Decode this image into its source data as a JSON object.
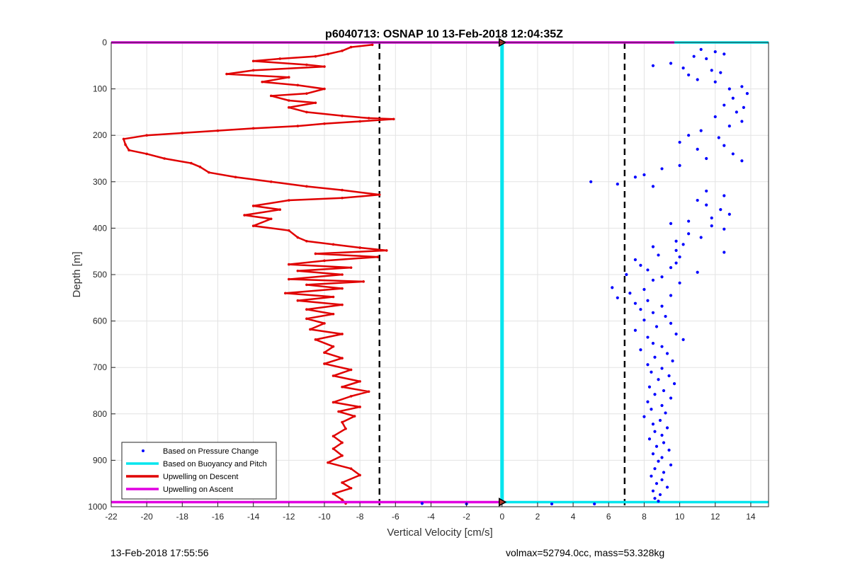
{
  "footer": {
    "timestamp": "13-Feb-2018 17:55:56",
    "mass_info": "volmax=52794.0cc, mass=53.328kg"
  },
  "colors": {
    "pressure_points": "#0000ff",
    "buoyancy_line": "#00e5ee",
    "descent_line": "#e00000",
    "ascent_line": "#e000e0",
    "dashed_lines": "#000000",
    "marker_fill": "#c0392b"
  },
  "chart_data": {
    "type": "line",
    "title": "p6040713: OSNAP 10 13-Feb-2018 12:04:35Z",
    "xlabel": "Vertical Velocity [cm/s]",
    "ylabel": "Depth [m]",
    "xlim": [
      -22,
      15
    ],
    "ylim": [
      0,
      1000
    ],
    "y_reversed": true,
    "grid": true,
    "xticks": [
      -22,
      -20,
      -18,
      -16,
      -14,
      -12,
      -10,
      -8,
      -6,
      -4,
      -2,
      0,
      2,
      4,
      6,
      8,
      10,
      12,
      14
    ],
    "yticks": [
      0,
      100,
      200,
      300,
      400,
      500,
      600,
      700,
      800,
      900,
      1000
    ],
    "legend": {
      "placement": "bottom-left",
      "entries": [
        {
          "label": "Based on Pressure Change",
          "style": "dot",
          "color": "#0000ff"
        },
        {
          "label": "Based on Buoyancy and Pitch",
          "style": "line",
          "color": "#00e5ee"
        },
        {
          "label": "Upwelling on Descent",
          "style": "line",
          "color": "#e00000"
        },
        {
          "label": "Upwelling on Ascent",
          "style": "line",
          "color": "#e000e0"
        }
      ]
    },
    "reference_lines": {
      "dashed_vertical_x": [
        -6.9,
        6.9
      ],
      "buoyancy_vertical_x": 0,
      "surface_depth": 0,
      "bottom_depth": 990
    },
    "series": [
      {
        "name": "Upwelling on Descent",
        "kind": "line",
        "points": [
          [
            -7.3,
            5
          ],
          [
            -8.5,
            10
          ],
          [
            -9.0,
            18
          ],
          [
            -9.8,
            25
          ],
          [
            -10.5,
            30
          ],
          [
            -12.5,
            35
          ],
          [
            -14.0,
            40
          ],
          [
            -11.0,
            48
          ],
          [
            -10.0,
            52
          ],
          [
            -14.0,
            60
          ],
          [
            -15.5,
            68
          ],
          [
            -12.0,
            75
          ],
          [
            -13.5,
            85
          ],
          [
            -11.5,
            92
          ],
          [
            -10.0,
            100
          ],
          [
            -11.0,
            110
          ],
          [
            -13.0,
            115
          ],
          [
            -12.0,
            125
          ],
          [
            -10.5,
            130
          ],
          [
            -12.0,
            140
          ],
          [
            -11.0,
            150
          ],
          [
            -9.0,
            158
          ],
          [
            -7.5,
            163
          ],
          [
            -6.1,
            165
          ],
          [
            -8.0,
            170
          ],
          [
            -10.0,
            175
          ],
          [
            -11.5,
            180
          ],
          [
            -14.0,
            185
          ],
          [
            -16.0,
            190
          ],
          [
            -18.0,
            195
          ],
          [
            -20.0,
            200
          ],
          [
            -21.3,
            208
          ],
          [
            -21.2,
            220
          ],
          [
            -21.0,
            232
          ],
          [
            -20.0,
            240
          ],
          [
            -19.0,
            250
          ],
          [
            -17.5,
            260
          ],
          [
            -17.0,
            268
          ],
          [
            -16.5,
            280
          ],
          [
            -15.0,
            290
          ],
          [
            -13.0,
            300
          ],
          [
            -11.0,
            310
          ],
          [
            -9.0,
            318
          ],
          [
            -6.9,
            328
          ],
          [
            -9.0,
            335
          ],
          [
            -12.0,
            340
          ],
          [
            -14.0,
            352
          ],
          [
            -12.5,
            360
          ],
          [
            -14.5,
            372
          ],
          [
            -13.0,
            380
          ],
          [
            -14.0,
            395
          ],
          [
            -12.0,
            405
          ],
          [
            -11.5,
            420
          ],
          [
            -11.0,
            428
          ],
          [
            -9.5,
            435
          ],
          [
            -8.0,
            442
          ],
          [
            -6.5,
            448
          ],
          [
            -10.5,
            455
          ],
          [
            -7.0,
            462
          ],
          [
            -10.0,
            470
          ],
          [
            -12.0,
            478
          ],
          [
            -8.5,
            485
          ],
          [
            -11.5,
            492
          ],
          [
            -9.0,
            500
          ],
          [
            -12.0,
            510
          ],
          [
            -7.8,
            515
          ],
          [
            -11.0,
            522
          ],
          [
            -9.0,
            530
          ],
          [
            -12.2,
            540
          ],
          [
            -9.5,
            548
          ],
          [
            -11.5,
            556
          ],
          [
            -9.0,
            565
          ],
          [
            -11.0,
            575
          ],
          [
            -9.5,
            585
          ],
          [
            -11.0,
            595
          ],
          [
            -10.0,
            605
          ],
          [
            -10.8,
            618
          ],
          [
            -9.0,
            628
          ],
          [
            -10.5,
            640
          ],
          [
            -9.5,
            655
          ],
          [
            -10.0,
            668
          ],
          [
            -9.0,
            680
          ],
          [
            -10.0,
            692
          ],
          [
            -8.5,
            705
          ],
          [
            -9.5,
            718
          ],
          [
            -8.0,
            730
          ],
          [
            -9.0,
            742
          ],
          [
            -7.5,
            752
          ],
          [
            -8.5,
            762
          ],
          [
            -9.5,
            775
          ],
          [
            -8.0,
            785
          ],
          [
            -9.2,
            795
          ],
          [
            -8.3,
            805
          ],
          [
            -9.0,
            818
          ],
          [
            -8.8,
            832
          ],
          [
            -9.5,
            848
          ],
          [
            -9.0,
            862
          ],
          [
            -9.5,
            875
          ],
          [
            -9.0,
            890
          ],
          [
            -9.8,
            905
          ],
          [
            -8.5,
            918
          ],
          [
            -8.0,
            932
          ],
          [
            -9.0,
            948
          ],
          [
            -8.5,
            960
          ],
          [
            -9.5,
            972
          ],
          [
            -9.0,
            985
          ],
          [
            -8.8,
            993
          ]
        ]
      },
      {
        "name": "Upwelling on Ascent",
        "kind": "line",
        "points": [
          [
            -22,
            0
          ],
          [
            9.7,
            0
          ]
        ]
      },
      {
        "name": "Based on Buoyancy and Pitch",
        "kind": "line",
        "points": [
          [
            9.7,
            0
          ],
          [
            15,
            0
          ]
        ]
      },
      {
        "name": "Based on Pressure Change",
        "kind": "scatter",
        "points": [
          [
            11.2,
            15
          ],
          [
            12.0,
            20
          ],
          [
            12.5,
            25
          ],
          [
            10.8,
            30
          ],
          [
            11.5,
            35
          ],
          [
            9.5,
            45
          ],
          [
            8.5,
            50
          ],
          [
            10.2,
            55
          ],
          [
            11.8,
            60
          ],
          [
            12.3,
            65
          ],
          [
            10.5,
            70
          ],
          [
            11.0,
            80
          ],
          [
            12.0,
            85
          ],
          [
            13.5,
            95
          ],
          [
            12.8,
            100
          ],
          [
            13.8,
            110
          ],
          [
            13.0,
            120
          ],
          [
            12.5,
            135
          ],
          [
            13.6,
            140
          ],
          [
            13.2,
            150
          ],
          [
            12.0,
            160
          ],
          [
            13.5,
            170
          ],
          [
            12.8,
            180
          ],
          [
            11.2,
            190
          ],
          [
            10.5,
            200
          ],
          [
            12.2,
            205
          ],
          [
            10.0,
            215
          ],
          [
            12.5,
            222
          ],
          [
            11.0,
            230
          ],
          [
            13.0,
            240
          ],
          [
            11.5,
            250
          ],
          [
            13.5,
            255
          ],
          [
            10.0,
            265
          ],
          [
            9.0,
            272
          ],
          [
            8.0,
            285
          ],
          [
            7.5,
            290
          ],
          [
            5.0,
            300
          ],
          [
            6.5,
            305
          ],
          [
            8.5,
            310
          ],
          [
            11.5,
            320
          ],
          [
            12.5,
            330
          ],
          [
            11.0,
            340
          ],
          [
            11.5,
            350
          ],
          [
            12.3,
            360
          ],
          [
            12.8,
            370
          ],
          [
            11.8,
            378
          ],
          [
            10.5,
            385
          ],
          [
            9.5,
            390
          ],
          [
            11.8,
            395
          ],
          [
            12.5,
            402
          ],
          [
            10.5,
            412
          ],
          [
            11.2,
            420
          ],
          [
            9.8,
            428
          ],
          [
            10.2,
            435
          ],
          [
            8.5,
            440
          ],
          [
            9.8,
            448
          ],
          [
            12.5,
            452
          ],
          [
            8.8,
            458
          ],
          [
            10.0,
            462
          ],
          [
            7.5,
            468
          ],
          [
            9.8,
            475
          ],
          [
            7.8,
            480
          ],
          [
            9.5,
            485
          ],
          [
            8.2,
            490
          ],
          [
            11.0,
            495
          ],
          [
            7.0,
            500
          ],
          [
            9.0,
            505
          ],
          [
            8.5,
            512
          ],
          [
            10.0,
            518
          ],
          [
            6.2,
            528
          ],
          [
            8.0,
            532
          ],
          [
            7.2,
            540
          ],
          [
            9.5,
            545
          ],
          [
            6.5,
            550
          ],
          [
            8.2,
            556
          ],
          [
            7.5,
            562
          ],
          [
            9.0,
            568
          ],
          [
            7.8,
            575
          ],
          [
            8.5,
            582
          ],
          [
            9.2,
            590
          ],
          [
            8.0,
            598
          ],
          [
            9.5,
            605
          ],
          [
            8.7,
            612
          ],
          [
            7.5,
            620
          ],
          [
            9.8,
            628
          ],
          [
            8.2,
            635
          ],
          [
            10.2,
            640
          ],
          [
            8.5,
            648
          ],
          [
            9.0,
            655
          ],
          [
            7.8,
            662
          ],
          [
            9.3,
            670
          ],
          [
            8.6,
            678
          ],
          [
            9.6,
            686
          ],
          [
            8.2,
            694
          ],
          [
            9.0,
            702
          ],
          [
            8.4,
            710
          ],
          [
            9.4,
            718
          ],
          [
            8.8,
            726
          ],
          [
            9.7,
            735
          ],
          [
            8.3,
            742
          ],
          [
            9.1,
            750
          ],
          [
            8.6,
            758
          ],
          [
            9.5,
            766
          ],
          [
            8.2,
            774
          ],
          [
            9.0,
            782
          ],
          [
            8.4,
            790
          ],
          [
            9.2,
            798
          ],
          [
            8.0,
            806
          ],
          [
            8.9,
            814
          ],
          [
            8.5,
            822
          ],
          [
            9.3,
            830
          ],
          [
            8.6,
            838
          ],
          [
            9.0,
            846
          ],
          [
            8.3,
            854
          ],
          [
            9.1,
            862
          ],
          [
            8.7,
            870
          ],
          [
            9.4,
            878
          ],
          [
            8.5,
            886
          ],
          [
            9.0,
            894
          ],
          [
            8.8,
            902
          ],
          [
            9.5,
            910
          ],
          [
            8.6,
            918
          ],
          [
            9.1,
            926
          ],
          [
            8.4,
            934
          ],
          [
            9.0,
            942
          ],
          [
            8.7,
            950
          ],
          [
            9.3,
            958
          ],
          [
            8.5,
            966
          ],
          [
            8.9,
            974
          ],
          [
            8.6,
            982
          ],
          [
            8.8,
            988
          ],
          [
            -4.5,
            993
          ],
          [
            -2.0,
            994
          ],
          [
            2.8,
            994
          ],
          [
            5.2,
            994
          ]
        ]
      }
    ]
  }
}
